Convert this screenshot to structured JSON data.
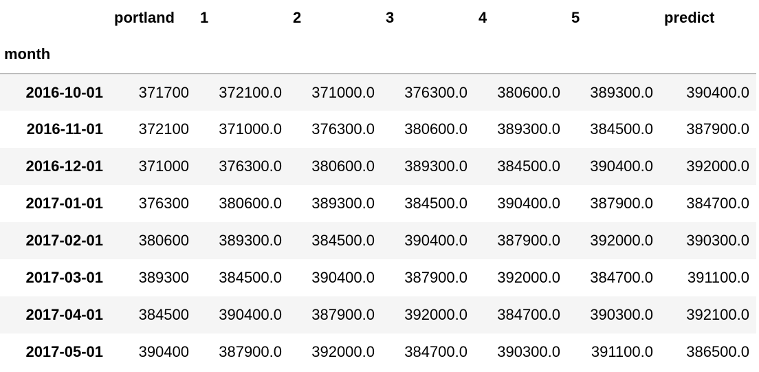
{
  "table": {
    "index_name": "month",
    "columns": [
      "portland",
      "1",
      "2",
      "3",
      "4",
      "5",
      "predict"
    ],
    "rows": [
      {
        "index": "2016-10-01",
        "values": [
          "371700",
          "372100.0",
          "371000.0",
          "376300.0",
          "380600.0",
          "389300.0",
          "390400.0"
        ]
      },
      {
        "index": "2016-11-01",
        "values": [
          "372100",
          "371000.0",
          "376300.0",
          "380600.0",
          "389300.0",
          "384500.0",
          "387900.0"
        ]
      },
      {
        "index": "2016-12-01",
        "values": [
          "371000",
          "376300.0",
          "380600.0",
          "389300.0",
          "384500.0",
          "390400.0",
          "392000.0"
        ]
      },
      {
        "index": "2017-01-01",
        "values": [
          "376300",
          "380600.0",
          "389300.0",
          "384500.0",
          "390400.0",
          "387900.0",
          "384700.0"
        ]
      },
      {
        "index": "2017-02-01",
        "values": [
          "380600",
          "389300.0",
          "384500.0",
          "390400.0",
          "387900.0",
          "392000.0",
          "390300.0"
        ]
      },
      {
        "index": "2017-03-01",
        "values": [
          "389300",
          "384500.0",
          "390400.0",
          "387900.0",
          "392000.0",
          "384700.0",
          "391100.0"
        ]
      },
      {
        "index": "2017-04-01",
        "values": [
          "384500",
          "390400.0",
          "387900.0",
          "392000.0",
          "384700.0",
          "390300.0",
          "392100.0"
        ]
      },
      {
        "index": "2017-05-01",
        "values": [
          "390400",
          "387900.0",
          "392000.0",
          "384700.0",
          "390300.0",
          "391100.0",
          "386500.0"
        ]
      }
    ]
  }
}
